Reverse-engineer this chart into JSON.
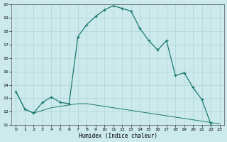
{
  "xlabel": "Humidex (Indice chaleur)",
  "bg_color": "#cce9eb",
  "grid_color": "#aed4d6",
  "line_color": "#1a7a6e",
  "xlim": [
    -0.5,
    23.5
  ],
  "ylim": [
    11,
    20
  ],
  "xticks": [
    0,
    1,
    2,
    3,
    4,
    5,
    6,
    7,
    8,
    9,
    10,
    11,
    12,
    13,
    14,
    15,
    16,
    17,
    18,
    19,
    20,
    21,
    22,
    23
  ],
  "yticks": [
    11,
    12,
    13,
    14,
    15,
    16,
    17,
    18,
    19,
    20
  ],
  "line1_x": [
    0,
    1,
    2,
    3,
    4,
    5,
    6,
    7,
    8,
    9,
    10,
    11,
    12,
    13,
    14,
    15,
    16,
    17,
    18,
    19,
    20,
    21,
    22
  ],
  "line1_y": [
    13.5,
    12.2,
    11.9,
    12.7,
    13.1,
    12.7,
    12.6,
    17.6,
    18.5,
    19.1,
    19.6,
    19.9,
    19.7,
    19.5,
    18.2,
    17.3,
    16.6,
    17.3,
    14.7,
    14.9,
    13.8,
    12.9,
    11.1
  ],
  "line2_x": [
    0,
    1,
    2,
    3,
    4,
    5,
    6,
    7,
    8,
    9,
    10,
    11,
    12,
    13,
    14,
    15,
    16,
    17,
    18,
    19,
    20,
    21,
    22,
    23
  ],
  "line2_y": [
    13.5,
    12.2,
    11.9,
    12.1,
    12.3,
    12.4,
    12.5,
    12.6,
    12.6,
    12.5,
    12.4,
    12.3,
    12.2,
    12.1,
    12.0,
    11.9,
    11.8,
    11.7,
    11.6,
    11.5,
    11.4,
    11.3,
    11.2,
    11.1
  ]
}
